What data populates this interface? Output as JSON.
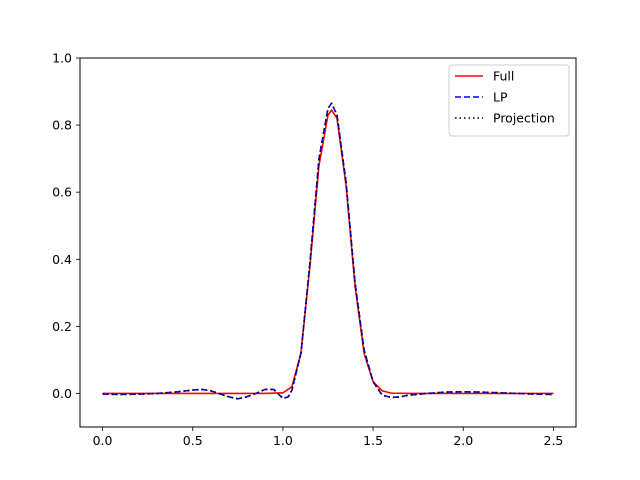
{
  "chart_data": {
    "type": "line",
    "title": "",
    "xlabel": "",
    "ylabel": "",
    "xlim": [
      -0.125,
      2.625
    ],
    "ylim": [
      -0.1,
      1.0
    ],
    "x_ticks": [
      "0.0",
      "0.5",
      "1.0",
      "1.5",
      "2.0",
      "2.5"
    ],
    "y_ticks": [
      "0.0",
      "0.2",
      "0.4",
      "0.6",
      "0.8",
      "1.0"
    ],
    "grid": false,
    "legend_position": "top-right",
    "series": [
      {
        "name": "Full",
        "color": "#ff0000",
        "style": "solid",
        "x": [
          0.0,
          0.9,
          1.0,
          1.05,
          1.1,
          1.15,
          1.2,
          1.25,
          1.27,
          1.3,
          1.35,
          1.4,
          1.45,
          1.5,
          1.55,
          1.6,
          1.7,
          2.5
        ],
        "y": [
          0.0,
          0.0,
          0.002,
          0.02,
          0.12,
          0.38,
          0.68,
          0.83,
          0.845,
          0.82,
          0.62,
          0.32,
          0.12,
          0.035,
          0.008,
          0.001,
          0.0,
          0.0
        ]
      },
      {
        "name": "LP",
        "color": "#0000ff",
        "style": "dashed",
        "x": [
          0.0,
          0.1,
          0.2,
          0.3,
          0.4,
          0.5,
          0.55,
          0.6,
          0.7,
          0.75,
          0.8,
          0.85,
          0.9,
          0.95,
          1.0,
          1.03,
          1.05,
          1.1,
          1.15,
          1.2,
          1.25,
          1.27,
          1.3,
          1.35,
          1.4,
          1.45,
          1.5,
          1.55,
          1.6,
          1.65,
          1.7,
          1.8,
          1.9,
          2.0,
          2.1,
          2.2,
          2.3,
          2.4,
          2.5
        ],
        "y": [
          -0.002,
          -0.003,
          -0.002,
          0.0,
          0.004,
          0.01,
          0.012,
          0.008,
          -0.01,
          -0.016,
          -0.01,
          0.0,
          0.012,
          0.012,
          -0.015,
          -0.01,
          0.01,
          0.12,
          0.39,
          0.7,
          0.85,
          0.865,
          0.83,
          0.63,
          0.33,
          0.13,
          0.035,
          -0.005,
          -0.012,
          -0.01,
          -0.005,
          0.0,
          0.004,
          0.005,
          0.004,
          0.002,
          0.0,
          -0.002,
          -0.003
        ]
      },
      {
        "name": "Projection",
        "color": "#000000",
        "style": "dotted",
        "x": [
          0.0,
          0.1,
          0.2,
          0.3,
          0.4,
          0.5,
          0.55,
          0.6,
          0.7,
          0.75,
          0.8,
          0.85,
          0.9,
          0.95,
          1.0,
          1.03,
          1.05,
          1.1,
          1.15,
          1.2,
          1.25,
          1.27,
          1.3,
          1.35,
          1.4,
          1.45,
          1.5,
          1.55,
          1.6,
          1.65,
          1.7,
          1.8,
          1.9,
          2.0,
          2.1,
          2.2,
          2.3,
          2.4,
          2.5
        ],
        "y": [
          -0.002,
          -0.003,
          -0.002,
          0.0,
          0.004,
          0.01,
          0.012,
          0.008,
          -0.01,
          -0.016,
          -0.01,
          0.0,
          0.012,
          0.012,
          -0.015,
          -0.01,
          0.01,
          0.12,
          0.39,
          0.7,
          0.85,
          0.865,
          0.83,
          0.63,
          0.33,
          0.13,
          0.035,
          -0.005,
          -0.012,
          -0.01,
          -0.005,
          0.0,
          0.004,
          0.005,
          0.004,
          0.002,
          0.0,
          -0.002,
          -0.003
        ]
      }
    ]
  }
}
